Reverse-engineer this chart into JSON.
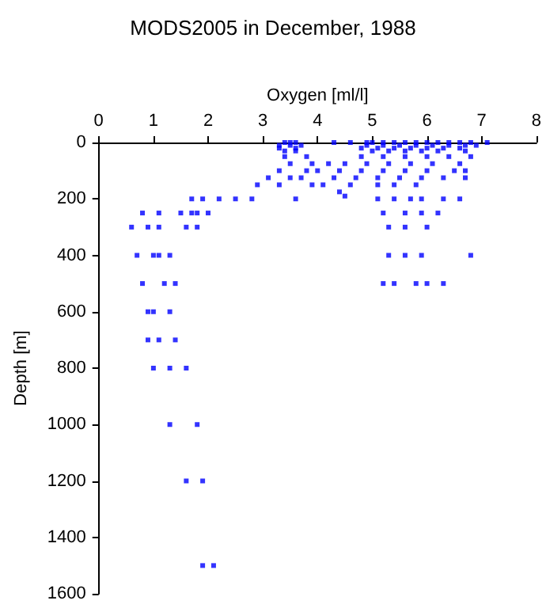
{
  "chart_data": {
    "type": "scatter",
    "title": "MODS2005 in December, 1988",
    "xlabel": "Oxygen [ml/l]",
    "ylabel": "Depth [m]",
    "xlim": [
      0,
      8
    ],
    "xticks": [
      0,
      1,
      2,
      3,
      4,
      5,
      6,
      7,
      8
    ],
    "ylim": [
      1600,
      0
    ],
    "yticks": [
      0,
      200,
      400,
      600,
      800,
      1000,
      1200,
      1400,
      1600
    ],
    "grid": false,
    "marker": "square",
    "series": [
      {
        "color": "#0000ff",
        "x": [
          3.4,
          3.5,
          3.6,
          4.3,
          4.6,
          4.9,
          5.0,
          5.2,
          5.4,
          5.6,
          5.8,
          6.0,
          6.2,
          6.4,
          6.6,
          6.8,
          7.1,
          3.3,
          3.5,
          3.7,
          4.9,
          5.2,
          5.5,
          5.8,
          6.1,
          6.4,
          6.7,
          6.9,
          3.3,
          3.6,
          4.8,
          5.1,
          5.4,
          5.7,
          6.0,
          6.3,
          6.6,
          3.4,
          3.6,
          5.0,
          5.3,
          5.6,
          5.9,
          6.2,
          6.7,
          3.4,
          3.8,
          4.8,
          5.2,
          5.6,
          6.0,
          6.4,
          6.8,
          3.5,
          3.9,
          4.2,
          4.5,
          4.9,
          5.3,
          5.7,
          6.1,
          6.6,
          3.3,
          3.8,
          4.0,
          4.4,
          4.8,
          5.2,
          5.6,
          6.0,
          6.5,
          6.7,
          3.1,
          3.5,
          3.7,
          4.3,
          4.7,
          5.1,
          5.5,
          5.9,
          6.3,
          6.7,
          2.9,
          3.3,
          3.9,
          4.1,
          4.6,
          5.1,
          5.4,
          5.8,
          4.4,
          4.5,
          1.7,
          1.9,
          2.2,
          2.5,
          2.8,
          3.6,
          5.1,
          5.4,
          5.7,
          5.9,
          6.3,
          6.6,
          0.8,
          1.1,
          1.5,
          1.7,
          1.8,
          2.0,
          5.2,
          5.6,
          5.9,
          6.2,
          0.6,
          0.9,
          1.1,
          1.6,
          1.8,
          5.3,
          5.6,
          6.0,
          0.7,
          1.0,
          1.1,
          1.3,
          5.3,
          5.6,
          5.9,
          6.8,
          0.8,
          1.2,
          1.4,
          5.2,
          5.4,
          5.8,
          6.0,
          6.3,
          0.9,
          1.0,
          1.3,
          0.9,
          1.1,
          1.4,
          1.0,
          1.3,
          1.6,
          1.3,
          1.8,
          1.6,
          1.9,
          1.9,
          2.1
        ],
        "values": [
          0,
          0,
          0,
          0,
          0,
          0,
          0,
          0,
          0,
          0,
          0,
          0,
          0,
          0,
          0,
          0,
          0,
          10,
          10,
          10,
          10,
          10,
          10,
          10,
          10,
          10,
          10,
          10,
          20,
          20,
          20,
          20,
          20,
          20,
          20,
          20,
          20,
          30,
          30,
          30,
          30,
          30,
          30,
          30,
          30,
          50,
          50,
          50,
          50,
          50,
          50,
          50,
          50,
          75,
          75,
          75,
          75,
          75,
          75,
          75,
          75,
          75,
          100,
          100,
          100,
          100,
          100,
          100,
          100,
          100,
          100,
          100,
          125,
          125,
          125,
          125,
          125,
          125,
          125,
          125,
          125,
          125,
          150,
          150,
          150,
          150,
          150,
          150,
          150,
          150,
          175,
          190,
          200,
          200,
          200,
          200,
          200,
          200,
          200,
          200,
          200,
          200,
          200,
          200,
          250,
          250,
          250,
          250,
          250,
          250,
          250,
          250,
          250,
          250,
          300,
          300,
          300,
          300,
          300,
          300,
          300,
          300,
          400,
          400,
          400,
          400,
          400,
          400,
          400,
          400,
          500,
          500,
          500,
          500,
          500,
          500,
          500,
          500,
          600,
          600,
          600,
          700,
          700,
          700,
          800,
          800,
          800,
          1000,
          1000,
          1200,
          1200,
          1500,
          1500
        ]
      }
    ]
  }
}
